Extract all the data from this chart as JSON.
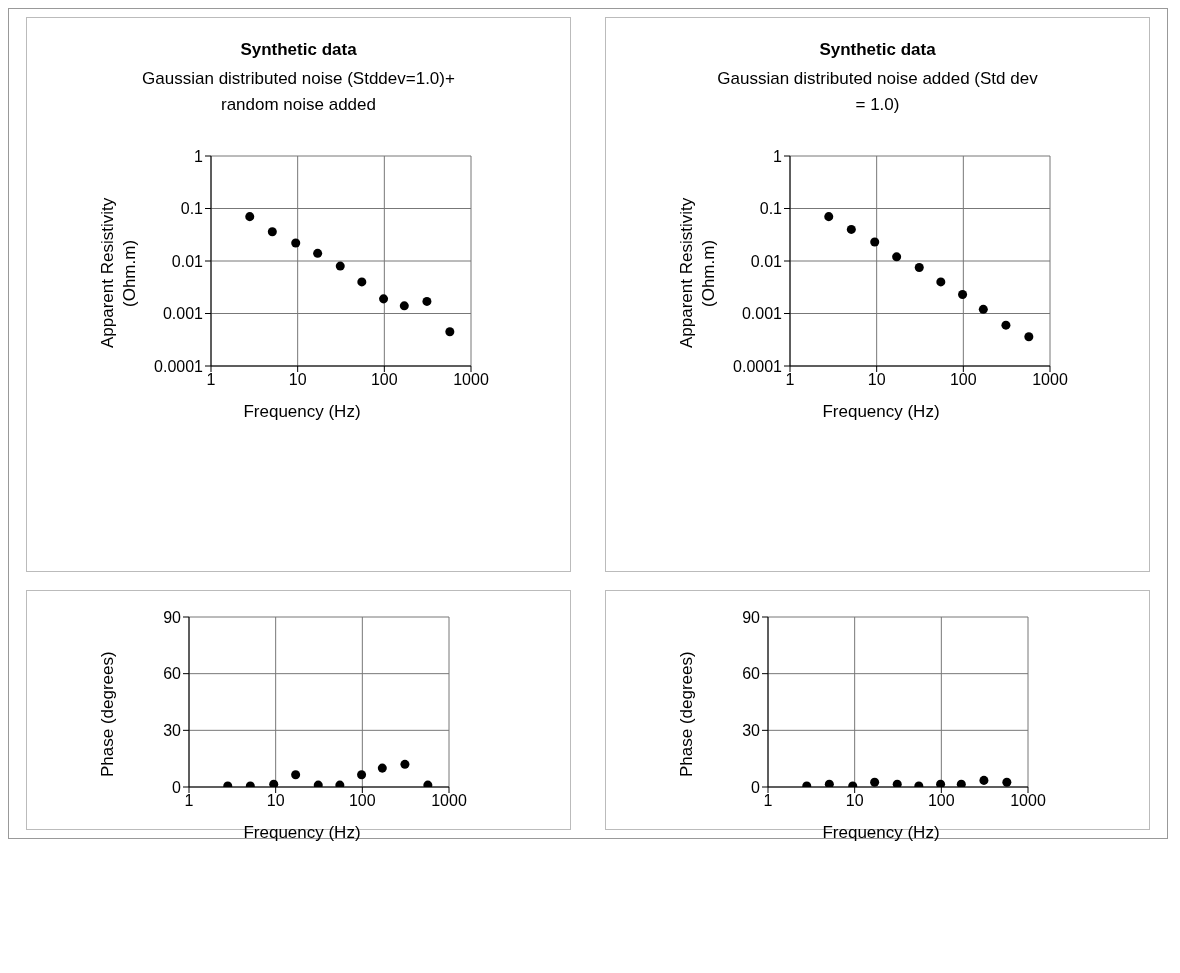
{
  "chart_data": [
    {
      "type": "scatter",
      "title": "Synthetic data",
      "subtitle": "Gaussian distributed noise (Stddev=1.0)+ random noise added",
      "xlabel": "Frequency (Hz)",
      "ylabel": "Apparent Resistivity (Ohm.m)",
      "x": [
        2.8,
        5.1,
        9.5,
        17,
        31,
        55,
        98,
        170,
        310,
        570
      ],
      "series": [
        {
          "color": "#000000",
          "values": [
            0.07,
            0.036,
            0.022,
            0.014,
            0.008,
            0.004,
            0.0019,
            0.0014,
            0.0017,
            0.00045
          ]
        }
      ],
      "xlim": [
        1,
        1000
      ],
      "xticks": [
        1,
        10,
        100,
        1000
      ],
      "ylim": [
        0.0001,
        1
      ],
      "yticks": [
        0.0001,
        0.001,
        0.01,
        0.1,
        1
      ],
      "log": "xy",
      "grid": true,
      "marker": "circle"
    },
    {
      "type": "scatter",
      "title": "Synthetic data",
      "subtitle": "Gaussian distributed noise added (Std dev = 1.0)",
      "xlabel": "Frequency (Hz)",
      "ylabel": "Apparent Resistivity (Ohm.m)",
      "x": [
        2.8,
        5.1,
        9.5,
        17,
        31,
        55,
        98,
        170,
        310,
        570
      ],
      "series": [
        {
          "color": "#000000",
          "values": [
            0.07,
            0.04,
            0.023,
            0.012,
            0.0075,
            0.004,
            0.0023,
            0.0012,
            0.0006,
            0.00036
          ]
        }
      ],
      "xlim": [
        1,
        1000
      ],
      "xticks": [
        1,
        10,
        100,
        1000
      ],
      "ylim": [
        0.0001,
        1
      ],
      "yticks": [
        0.0001,
        0.001,
        0.01,
        0.1,
        1
      ],
      "log": "xy",
      "grid": true,
      "marker": "circle"
    },
    {
      "type": "scatter",
      "xlabel": "Frequency (Hz)",
      "ylabel": "Phase (degrees)",
      "x": [
        2.8,
        5.1,
        9.5,
        17,
        31,
        55,
        98,
        170,
        310,
        570
      ],
      "series": [
        {
          "color": "#000000",
          "values": [
            0.5,
            0.5,
            1.5,
            6.5,
            1,
            1,
            6.5,
            10,
            12,
            1
          ]
        }
      ],
      "xlim": [
        1,
        1000
      ],
      "xticks": [
        1,
        10,
        100,
        1000
      ],
      "ylim": [
        0,
        90
      ],
      "yticks": [
        0,
        30,
        60,
        90
      ],
      "log": "x",
      "grid": true,
      "marker": "circle"
    },
    {
      "type": "scatter",
      "xlabel": "Frequency (Hz)",
      "ylabel": "Phase (degrees)",
      "x": [
        2.8,
        5.1,
        9.5,
        17,
        31,
        55,
        98,
        170,
        310,
        570
      ],
      "series": [
        {
          "color": "#000000",
          "values": [
            0.5,
            1.5,
            0.5,
            2.5,
            1.5,
            0.5,
            1.5,
            1.5,
            3.5,
            2.5
          ]
        }
      ],
      "xlim": [
        1,
        1000
      ],
      "xticks": [
        1,
        10,
        100,
        1000
      ],
      "ylim": [
        0,
        90
      ],
      "yticks": [
        0,
        30,
        60,
        90
      ],
      "log": "x",
      "grid": true,
      "marker": "circle"
    }
  ]
}
